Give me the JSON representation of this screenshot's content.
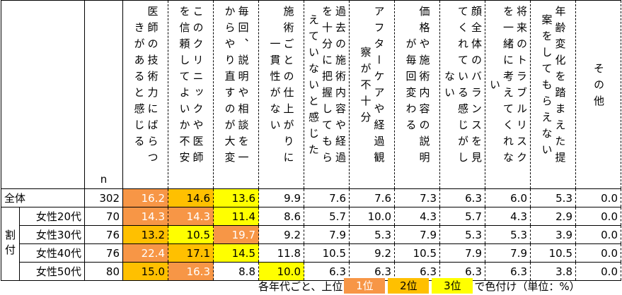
{
  "table": {
    "n_label": "n",
    "columns": [
      "医師の技術力にばらつきがあると感じる",
      "このクリニックや医師を信頼してよいか不安",
      "毎回、説明や相談を一からやり直すのが大変",
      "施術ごとの仕上がりに一貫性がない",
      "過去の施術内容や経過を十分に把握してもらえていないと感じた",
      "アフターケアや経過観察が不十分",
      "価格や施術内容の説明が毎回変わる",
      "顔全体のバランスを見てくれている感じがしない",
      "将来のトラブルリスクを一緒に考えてくれない",
      "年齢変化を踏まえた提案をしてもらえない",
      "その他"
    ],
    "group_label": "割付",
    "rank_colors": [
      "#f79646",
      "#ffc000",
      "#ffff00"
    ],
    "rows": [
      {
        "label": "全体",
        "n": "302",
        "cells": [
          "16.2",
          "14.6",
          "13.6",
          "9.9",
          "7.6",
          "7.6",
          "7.3",
          "6.3",
          "6.0",
          "5.3",
          "0.0"
        ],
        "ranks": [
          1,
          2,
          3,
          null,
          null,
          null,
          null,
          null,
          null,
          null,
          null
        ]
      },
      {
        "label": "女性20代",
        "n": "70",
        "cells": [
          "14.3",
          "14.3",
          "11.4",
          "8.6",
          "5.7",
          "10.0",
          "4.3",
          "5.7",
          "4.3",
          "2.9",
          "0.0"
        ],
        "ranks": [
          1,
          1,
          3,
          null,
          null,
          null,
          null,
          null,
          null,
          null,
          null
        ]
      },
      {
        "label": "女性30代",
        "n": "76",
        "cells": [
          "13.2",
          "10.5",
          "19.7",
          "9.2",
          "7.9",
          "5.3",
          "7.9",
          "5.3",
          "5.3",
          "3.9",
          "0.0"
        ],
        "ranks": [
          2,
          3,
          1,
          null,
          null,
          null,
          null,
          null,
          null,
          null,
          null
        ]
      },
      {
        "label": "女性40代",
        "n": "76",
        "cells": [
          "22.4",
          "17.1",
          "14.5",
          "11.8",
          "10.5",
          "9.2",
          "10.5",
          "7.9",
          "7.9",
          "10.5",
          "0.0"
        ],
        "ranks": [
          1,
          2,
          3,
          null,
          null,
          null,
          null,
          null,
          null,
          null,
          null
        ]
      },
      {
        "label": "女性50代",
        "n": "80",
        "cells": [
          "15.0",
          "16.3",
          "8.8",
          "10.0",
          "6.3",
          "6.3",
          "6.3",
          "6.3",
          "6.3",
          "3.8",
          "0.0"
        ],
        "ranks": [
          2,
          1,
          null,
          3,
          null,
          null,
          null,
          null,
          null,
          null,
          null
        ]
      }
    ]
  },
  "footer": {
    "prefix": "各年代ごと、上位",
    "ranks": [
      "1位",
      "2位",
      "3位"
    ],
    "suffix": "で色付け（単位：%）"
  }
}
